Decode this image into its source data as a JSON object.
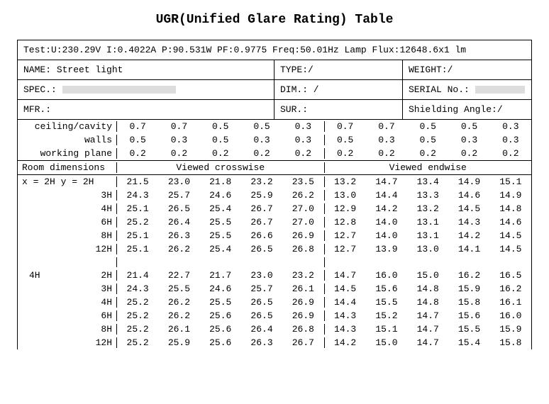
{
  "title": "UGR(Unified Glare Rating) Table",
  "test_line": "Test:U:230.29V I:0.4022A P:90.531W PF:0.9775 Freq:50.01Hz  Lamp Flux:12648.6x1 lm",
  "meta": {
    "name_label": "NAME:",
    "name_value": "Street light",
    "type_label": "TYPE:/",
    "weight_label": "WEIGHT:/",
    "spec_label": "SPEC.:",
    "dim_label": "DIM.: /",
    "serial_label": "SERIAL No.:",
    "mfr_label": "MFR.:",
    "sur_label": "SUR.:",
    "shielding_label": "Shielding Angle:/"
  },
  "headers": {
    "ceiling": "ceiling/cavity",
    "walls": "walls",
    "working": "working plane",
    "roomdim": "Room dimensions",
    "crosswise": "Viewed crosswise",
    "endwise": "Viewed endwise",
    "xprefix": "x =  2H y =  2H"
  },
  "refl": {
    "ceiling_left": [
      "0.7",
      "0.7",
      "0.5",
      "0.5",
      "0.3"
    ],
    "ceiling_right": [
      "0.7",
      "0.7",
      "0.5",
      "0.5",
      "0.3"
    ],
    "walls_left": [
      "0.5",
      "0.3",
      "0.5",
      "0.3",
      "0.3"
    ],
    "walls_right": [
      "0.5",
      "0.3",
      "0.5",
      "0.3",
      "0.3"
    ],
    "working_left": [
      "0.2",
      "0.2",
      "0.2",
      "0.2",
      "0.2"
    ],
    "working_right": [
      "0.2",
      "0.2",
      "0.2",
      "0.2",
      "0.2"
    ]
  },
  "sectionA": {
    "x_label": "",
    "rows": [
      {
        "y": "",
        "left": [
          "21.5",
          "23.0",
          "21.8",
          "23.2",
          "23.5"
        ],
        "right": [
          "13.2",
          "14.7",
          "13.4",
          "14.9",
          "15.1"
        ]
      },
      {
        "y": "3H",
        "left": [
          "24.3",
          "25.7",
          "24.6",
          "25.9",
          "26.2"
        ],
        "right": [
          "13.0",
          "14.4",
          "13.3",
          "14.6",
          "14.9"
        ]
      },
      {
        "y": "4H",
        "left": [
          "25.1",
          "26.5",
          "25.4",
          "26.7",
          "27.0"
        ],
        "right": [
          "12.9",
          "14.2",
          "13.2",
          "14.5",
          "14.8"
        ]
      },
      {
        "y": "6H",
        "left": [
          "25.2",
          "26.4",
          "25.5",
          "26.7",
          "27.0"
        ],
        "right": [
          "12.8",
          "14.0",
          "13.1",
          "14.3",
          "14.6"
        ]
      },
      {
        "y": "8H",
        "left": [
          "25.1",
          "26.3",
          "25.5",
          "26.6",
          "26.9"
        ],
        "right": [
          "12.7",
          "14.0",
          "13.1",
          "14.2",
          "14.5"
        ]
      },
      {
        "y": "12H",
        "left": [
          "25.1",
          "26.2",
          "25.4",
          "26.5",
          "26.8"
        ],
        "right": [
          "12.7",
          "13.9",
          "13.0",
          "14.1",
          "14.5"
        ]
      }
    ]
  },
  "sectionB": {
    "x_label": "4H",
    "rows": [
      {
        "y": "2H",
        "left": [
          "21.4",
          "22.7",
          "21.7",
          "23.0",
          "23.2"
        ],
        "right": [
          "14.7",
          "16.0",
          "15.0",
          "16.2",
          "16.5"
        ]
      },
      {
        "y": "3H",
        "left": [
          "24.3",
          "25.5",
          "24.6",
          "25.7",
          "26.1"
        ],
        "right": [
          "14.5",
          "15.6",
          "14.8",
          "15.9",
          "16.2"
        ]
      },
      {
        "y": "4H",
        "left": [
          "25.2",
          "26.2",
          "25.5",
          "26.5",
          "26.9"
        ],
        "right": [
          "14.4",
          "15.5",
          "14.8",
          "15.8",
          "16.1"
        ]
      },
      {
        "y": "6H",
        "left": [
          "25.2",
          "26.2",
          "25.6",
          "26.5",
          "26.9"
        ],
        "right": [
          "14.3",
          "15.2",
          "14.7",
          "15.6",
          "16.0"
        ]
      },
      {
        "y": "8H",
        "left": [
          "25.2",
          "26.1",
          "25.6",
          "26.4",
          "26.8"
        ],
        "right": [
          "14.3",
          "15.1",
          "14.7",
          "15.5",
          "15.9"
        ]
      },
      {
        "y": "12H",
        "left": [
          "25.2",
          "25.9",
          "25.6",
          "26.3",
          "26.7"
        ],
        "right": [
          "14.2",
          "15.0",
          "14.7",
          "15.4",
          "15.8"
        ]
      }
    ]
  }
}
